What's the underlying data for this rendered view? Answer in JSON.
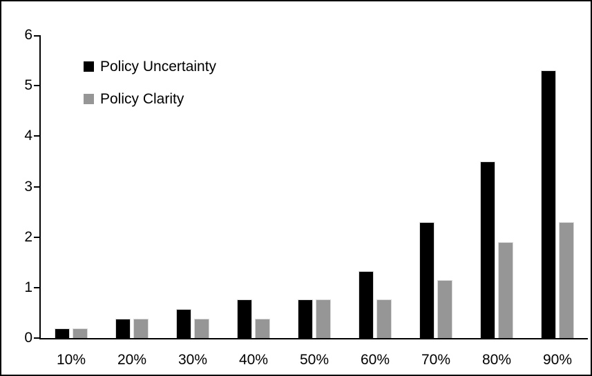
{
  "chart_data": {
    "type": "bar",
    "title": "",
    "categories": [
      "10%",
      "20%",
      "30%",
      "40%",
      "50%",
      "60%",
      "70%",
      "80%",
      "90%"
    ],
    "series": [
      {
        "name": "Policy Uncertainty",
        "color": "#000000",
        "values": [
          0.19,
          0.38,
          0.57,
          0.76,
          0.77,
          1.33,
          2.3,
          3.5,
          5.3
        ]
      },
      {
        "name": "Policy Clarity",
        "color": "#969696",
        "values": [
          0.19,
          0.38,
          0.38,
          0.38,
          0.77,
          0.77,
          1.15,
          1.9,
          2.3
        ]
      }
    ],
    "xlabel": "",
    "ylabel": "",
    "ylim": [
      0,
      6
    ],
    "yticks": [
      0,
      1,
      2,
      3,
      4,
      5,
      6
    ],
    "grid": false,
    "legend_position": "top-left"
  },
  "colors": {
    "background": "#ffffff",
    "frame_border": "#000000",
    "axis": "#000000",
    "text": "#000000",
    "bar_outline": "#d9d9d9"
  }
}
